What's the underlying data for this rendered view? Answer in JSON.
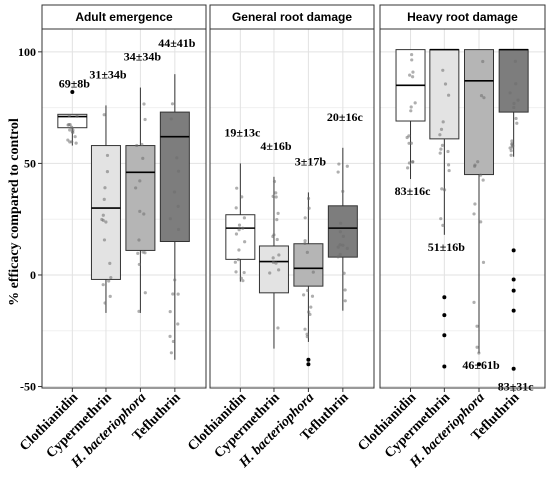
{
  "chart_data": {
    "type": "box",
    "ylabel": "% efficacy compared to control",
    "ylim": [
      -52,
      108
    ],
    "yticks": [
      -50,
      0,
      50,
      100
    ],
    "grid": true,
    "categories": [
      "Clothianidin",
      "Cypermethrin",
      "H. bacteriophora",
      "Tefluthrin"
    ],
    "italic_categories": [
      "H. bacteriophora"
    ],
    "fills": [
      "#ffffff",
      "#e3e3e3",
      "#b5b5b5",
      "#7d7d7d"
    ],
    "panels": [
      {
        "title": "Adult emergence",
        "boxes": [
          {
            "category": "Clothianidin",
            "q1": 66,
            "median": 71,
            "q3": 72,
            "whisker_low": 58,
            "whisker_high": 72,
            "outliers": [
              82
            ],
            "label": "69±8b"
          },
          {
            "category": "Cypermethrin",
            "q1": -2,
            "median": 30,
            "q3": 58,
            "whisker_low": -17,
            "whisker_high": 76,
            "outliers": [],
            "label": "31±34b"
          },
          {
            "category": "H. bacteriophora",
            "q1": 11,
            "median": 46,
            "q3": 58,
            "whisker_low": -17,
            "whisker_high": 84,
            "outliers": [],
            "label": "34±34b"
          },
          {
            "category": "Tefluthrin",
            "q1": 15,
            "median": 62,
            "q3": 73,
            "whisker_low": -38,
            "whisker_high": 90,
            "outliers": [],
            "label": "44±41b"
          }
        ]
      },
      {
        "title": "General root damage",
        "boxes": [
          {
            "category": "Clothianidin",
            "q1": 7,
            "median": 21,
            "q3": 27,
            "whisker_low": -3,
            "whisker_high": 50,
            "outliers": [],
            "label": "19±13c"
          },
          {
            "category": "Cypermethrin",
            "q1": -8,
            "median": 6,
            "q3": 13,
            "whisker_low": -33,
            "whisker_high": 44,
            "outliers": [],
            "label": "4±16b"
          },
          {
            "category": "H. bacteriophora",
            "q1": -5,
            "median": 3,
            "q3": 14,
            "whisker_low": -30,
            "whisker_high": 37,
            "outliers": [
              -38,
              -40
            ],
            "label": "3±17b"
          },
          {
            "category": "Tefluthrin",
            "q1": 8,
            "median": 21,
            "q3": 31,
            "whisker_low": -16,
            "whisker_high": 57,
            "outliers": [],
            "label": "20±16c"
          }
        ]
      },
      {
        "title": "Heavy root damage",
        "boxes": [
          {
            "category": "Clothianidin",
            "q1": 69,
            "median": 85,
            "q3": 101,
            "whisker_low": 43,
            "whisker_high": 101,
            "outliers": [],
            "label": "83±16c"
          },
          {
            "category": "Cypermethrin",
            "q1": 61,
            "median": 101,
            "q3": 101,
            "whisker_low": 18,
            "whisker_high": 101,
            "outliers": [
              -10,
              -18,
              -27,
              -41
            ],
            "label": "51±16b"
          },
          {
            "category": "H. bacteriophora",
            "q1": 45,
            "median": 87,
            "q3": 101,
            "whisker_low": -35,
            "whisker_high": 101,
            "outliers": [
              -40
            ],
            "label": "46±61b"
          },
          {
            "category": "Tefluthrin",
            "q1": 73,
            "median": 101,
            "q3": 101,
            "whisker_low": 53,
            "whisker_high": 101,
            "outliers": [
              11,
              -2,
              -7,
              -16,
              -42
            ],
            "label": "83±31c"
          }
        ]
      }
    ]
  }
}
